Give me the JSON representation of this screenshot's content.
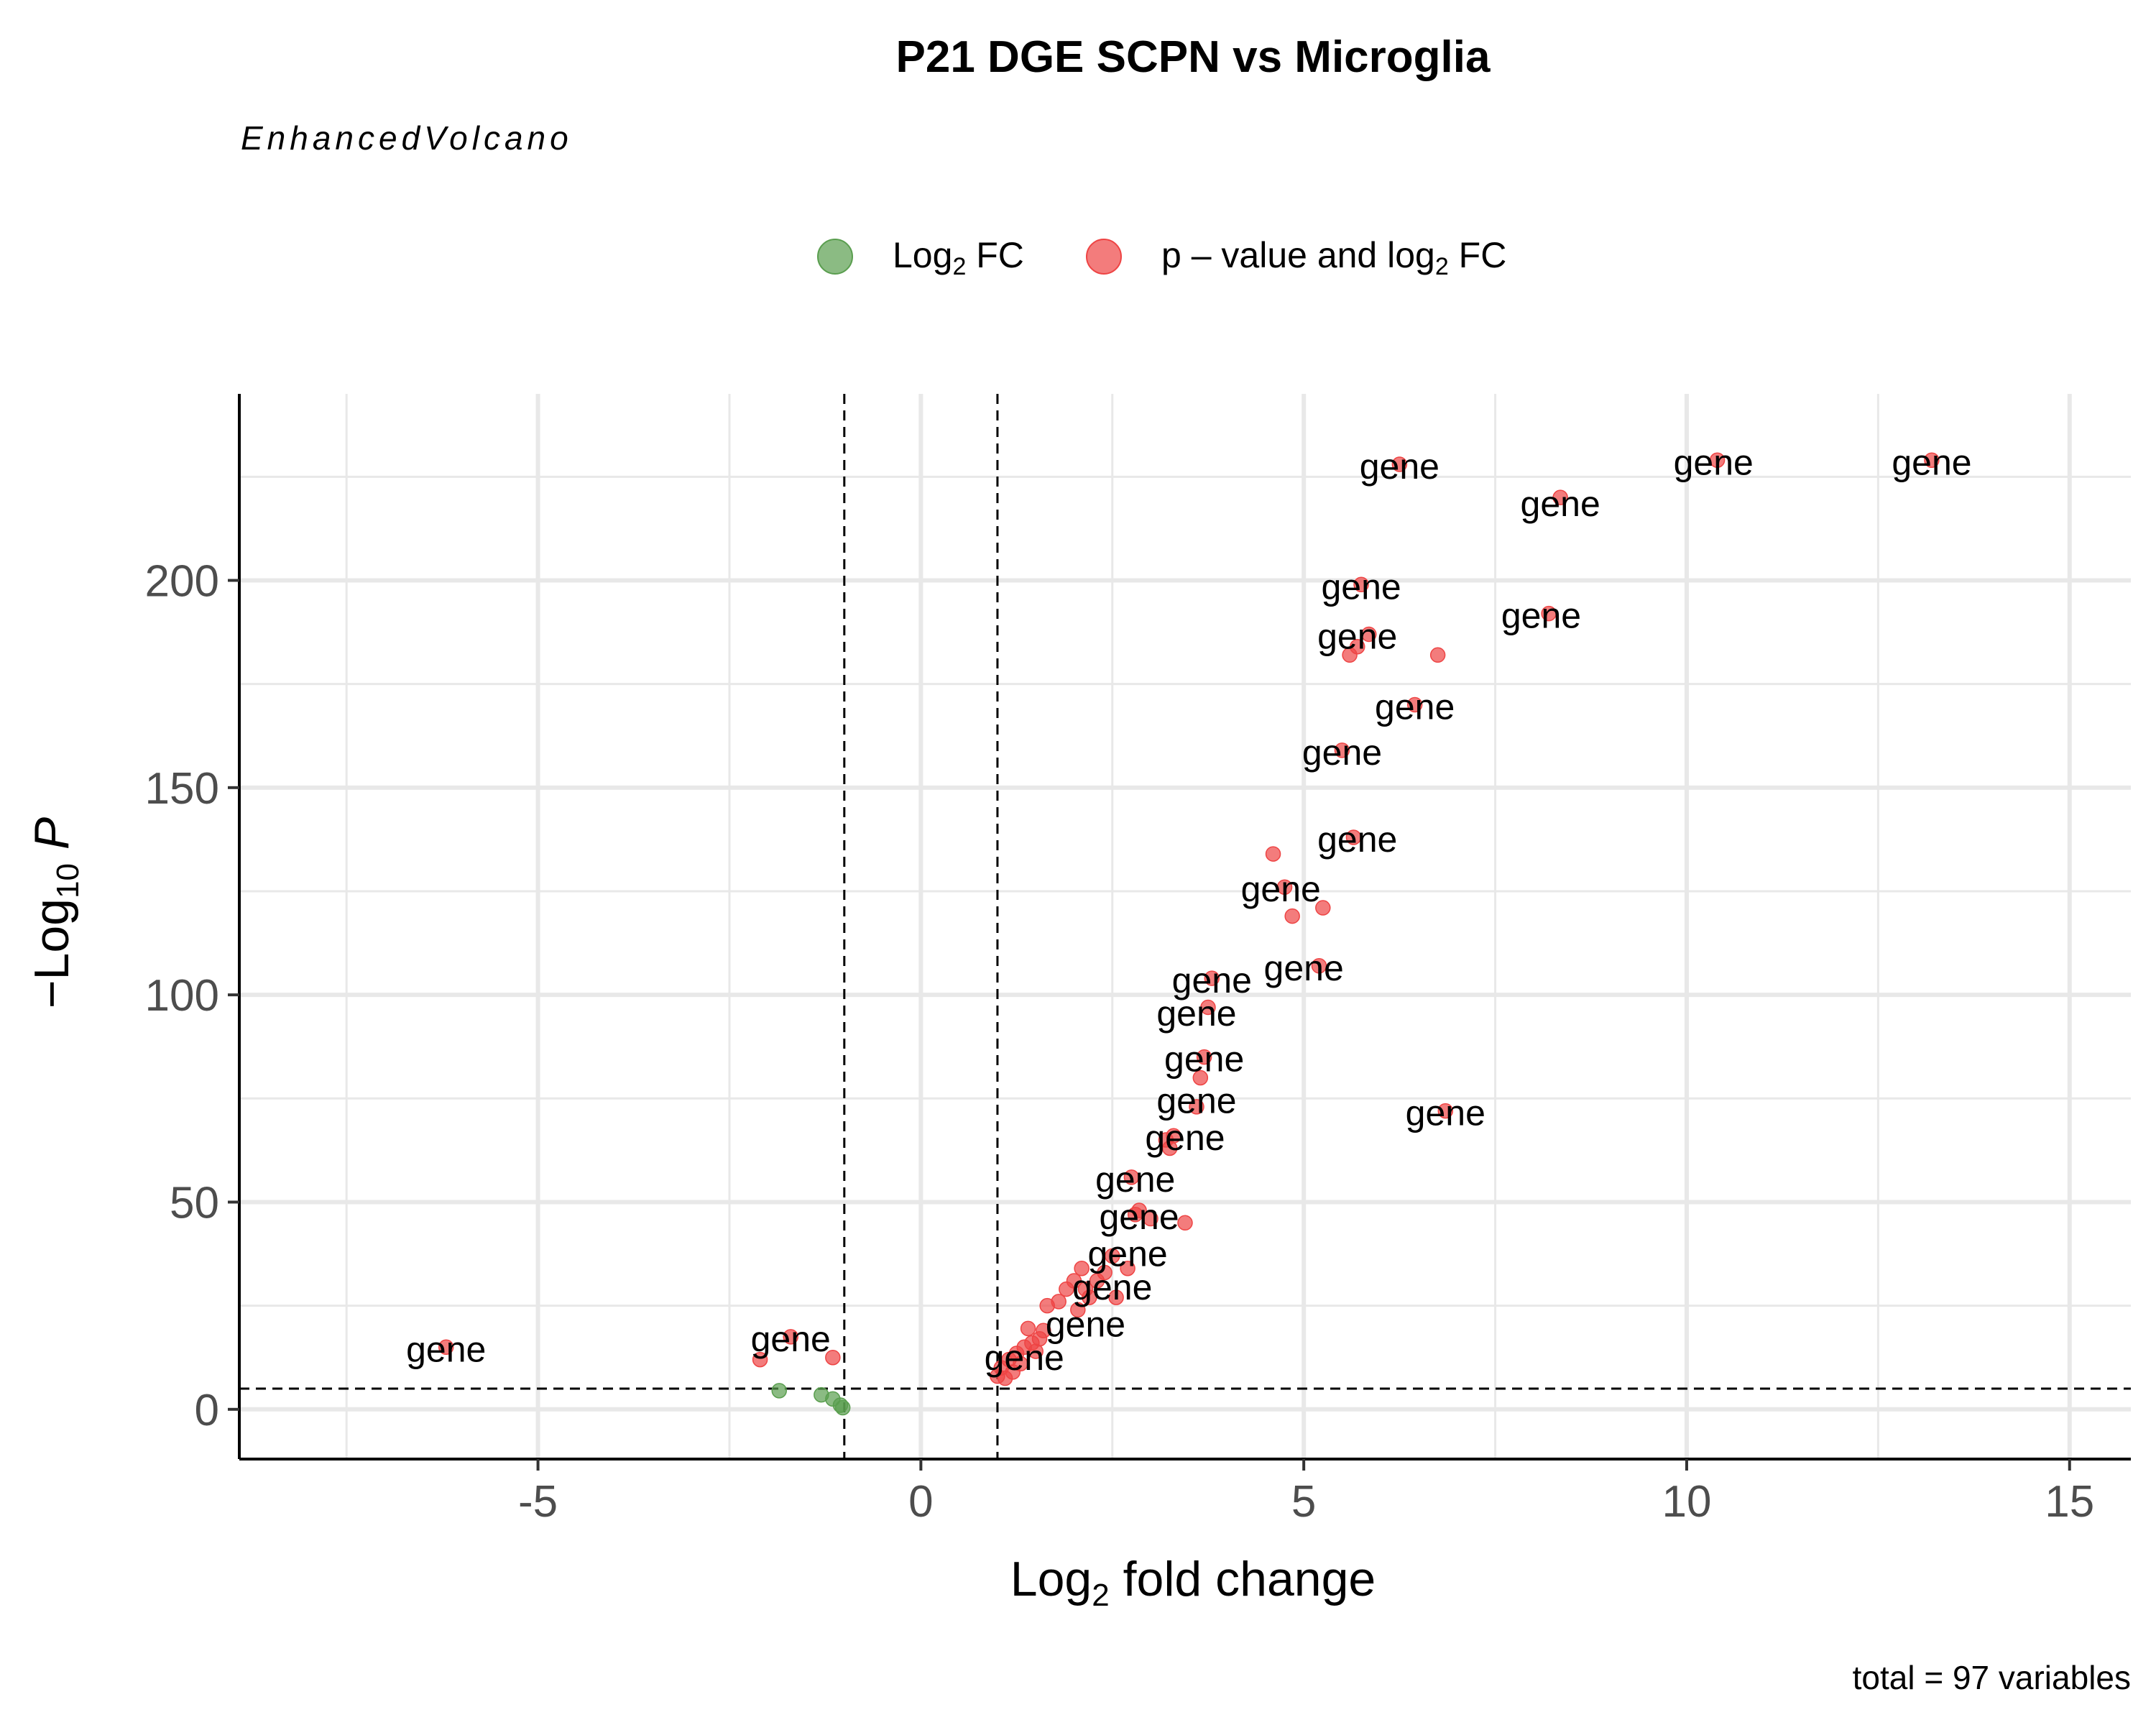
{
  "chart_data": {
    "type": "scatter",
    "title": "P21 DGE SCPN vs Microglia",
    "subtitle": "EnhancedVolcano",
    "caption": "total = 97 variables",
    "xlabel": {
      "main": "Log",
      "sub": "2",
      "rest": " fold change"
    },
    "ylabel": {
      "prefix": "−Log",
      "sub": "10",
      "italic": "P"
    },
    "xlim": [
      -8.9,
      15.8
    ],
    "ylim": [
      -12,
      245
    ],
    "x_ticks": [
      -5,
      0,
      5,
      10,
      15
    ],
    "x_tick_labels": [
      "-5",
      "0",
      "5",
      "10",
      "15"
    ],
    "y_ticks": [
      0,
      50,
      100,
      150,
      200
    ],
    "y_tick_labels": [
      "0",
      "50",
      "100",
      "150",
      "200"
    ],
    "x_minor_ticks": [
      -7.5,
      -2.5,
      2.5,
      7.5,
      12.5
    ],
    "y_minor_ticks": [
      25,
      75,
      125,
      175,
      225
    ],
    "grid": true,
    "legend_position": "top",
    "fc_cutoff": 1,
    "p_cutoff_log10": 5,
    "colors": {
      "log2fc": "#5a9e4f",
      "pvalue_and_log2fc": "#ee4444",
      "grid": "#e8e8e8"
    },
    "legend": [
      {
        "key": "log2fc",
        "main": "Log",
        "sub": "2",
        "rest": " FC"
      },
      {
        "key": "pvalue_and_log2fc",
        "main": "p – value and log",
        "sub": "2",
        "rest": " FC"
      }
    ],
    "series": [
      {
        "key": "log2fc",
        "points": [
          [
            -1.85,
            4.5
          ],
          [
            -1.3,
            3.5
          ],
          [
            -1.15,
            2.5
          ],
          [
            -1.05,
            1
          ],
          [
            -1.02,
            0.4
          ]
        ]
      },
      {
        "key": "pvalue_and_log2fc",
        "points": [
          [
            -6.2,
            15
          ],
          [
            -2.1,
            12
          ],
          [
            -1.15,
            12.5
          ],
          [
            -1.7,
            17.5
          ],
          [
            1.0,
            8
          ],
          [
            1.05,
            10
          ],
          [
            1.1,
            7.5
          ],
          [
            1.15,
            12
          ],
          [
            1.2,
            9
          ],
          [
            1.25,
            13.5
          ],
          [
            1.3,
            11
          ],
          [
            1.35,
            15
          ],
          [
            1.4,
            19.5
          ],
          [
            1.45,
            16
          ],
          [
            1.5,
            14
          ],
          [
            1.55,
            17
          ],
          [
            1.6,
            19
          ],
          [
            1.65,
            25
          ],
          [
            1.8,
            26
          ],
          [
            1.9,
            29
          ],
          [
            2.0,
            31
          ],
          [
            2.05,
            24
          ],
          [
            2.1,
            34
          ],
          [
            2.15,
            29
          ],
          [
            2.2,
            27
          ],
          [
            2.3,
            31
          ],
          [
            2.4,
            33
          ],
          [
            2.5,
            37
          ],
          [
            2.55,
            27
          ],
          [
            2.7,
            34
          ],
          [
            2.75,
            56
          ],
          [
            2.8,
            47
          ],
          [
            2.85,
            48
          ],
          [
            3.0,
            46
          ],
          [
            3.2,
            65
          ],
          [
            3.25,
            63
          ],
          [
            3.3,
            66
          ],
          [
            3.45,
            45
          ],
          [
            3.6,
            73
          ],
          [
            3.65,
            80
          ],
          [
            3.7,
            85
          ],
          [
            3.75,
            97
          ],
          [
            3.8,
            104
          ],
          [
            4.6,
            134
          ],
          [
            4.75,
            126
          ],
          [
            4.85,
            119
          ],
          [
            5.2,
            107
          ],
          [
            5.25,
            121
          ],
          [
            5.5,
            159
          ],
          [
            5.6,
            182
          ],
          [
            5.65,
            138
          ],
          [
            5.7,
            184
          ],
          [
            5.75,
            199
          ],
          [
            5.85,
            187
          ],
          [
            6.25,
            228
          ],
          [
            6.45,
            170
          ],
          [
            6.75,
            182
          ],
          [
            6.85,
            72
          ],
          [
            8.2,
            192
          ],
          [
            8.35,
            220
          ],
          [
            10.4,
            229
          ],
          [
            13.2,
            229
          ]
        ]
      }
    ],
    "gene_labels": [
      {
        "text": "gene",
        "x": -6.2,
        "y": 15
      },
      {
        "text": "gene",
        "x": -1.7,
        "y": 17.5
      },
      {
        "text": "gene",
        "x": 1.35,
        "y": 13
      },
      {
        "text": "gene",
        "x": 2.15,
        "y": 21
      },
      {
        "text": "gene",
        "x": 2.5,
        "y": 30
      },
      {
        "text": "gene",
        "x": 2.7,
        "y": 38
      },
      {
        "text": "gene",
        "x": 2.85,
        "y": 47
      },
      {
        "text": "gene",
        "x": 2.8,
        "y": 56
      },
      {
        "text": "gene",
        "x": 3.45,
        "y": 66
      },
      {
        "text": "gene",
        "x": 3.6,
        "y": 75
      },
      {
        "text": "gene",
        "x": 3.7,
        "y": 85
      },
      {
        "text": "gene",
        "x": 3.6,
        "y": 96
      },
      {
        "text": "gene",
        "x": 3.8,
        "y": 104
      },
      {
        "text": "gene",
        "x": 5.0,
        "y": 107
      },
      {
        "text": "gene",
        "x": 4.7,
        "y": 126
      },
      {
        "text": "gene",
        "x": 5.7,
        "y": 138
      },
      {
        "text": "gene",
        "x": 5.5,
        "y": 159
      },
      {
        "text": "gene",
        "x": 6.45,
        "y": 170
      },
      {
        "text": "gene",
        "x": 5.7,
        "y": 187
      },
      {
        "text": "gene",
        "x": 5.75,
        "y": 199
      },
      {
        "text": "gene",
        "x": 6.85,
        "y": 72
      },
      {
        "text": "gene",
        "x": 8.1,
        "y": 192
      },
      {
        "text": "gene",
        "x": 6.25,
        "y": 228
      },
      {
        "text": "gene",
        "x": 8.35,
        "y": 219
      },
      {
        "text": "gene",
        "x": 10.35,
        "y": 229
      },
      {
        "text": "gene",
        "x": 13.2,
        "y": 229
      }
    ]
  }
}
